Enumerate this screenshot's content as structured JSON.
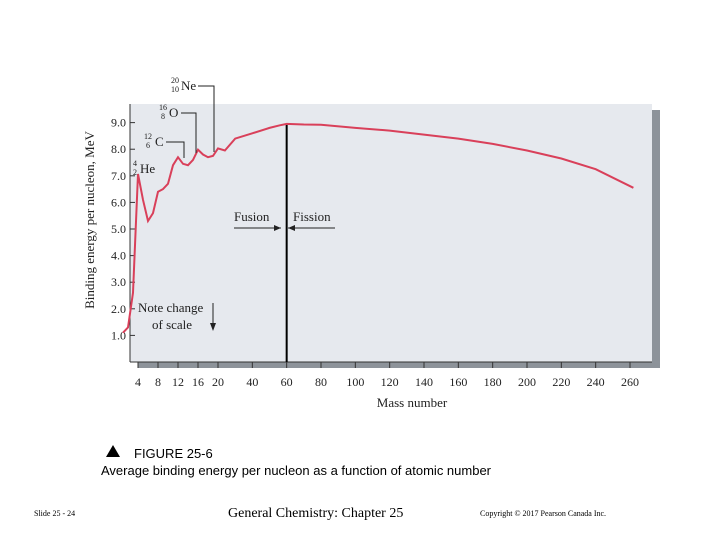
{
  "chart_data": {
    "type": "line",
    "ylabel": "Binding energy per nucleon, MeV",
    "xlabel": "Mass number",
    "ylim": [
      0,
      9.7
    ],
    "y_ticks": [
      "1.0",
      "2.0",
      "3.0",
      "4.0",
      "5.0",
      "6.0",
      "7.0",
      "8.0",
      "9.0"
    ],
    "x_ticks_left": [
      "4",
      "8",
      "12",
      "16",
      "20"
    ],
    "x_ticks_right": [
      "40",
      "60",
      "80",
      "100",
      "120",
      "140",
      "160",
      "180",
      "200",
      "220",
      "240",
      "260"
    ],
    "x_break": {
      "left_range": [
        0,
        20
      ],
      "right_range": [
        20,
        265
      ]
    },
    "series": [
      {
        "name": "Binding energy per nucleon",
        "points": [
          [
            1,
            1.1
          ],
          [
            2,
            1.3
          ],
          [
            3,
            2.6
          ],
          [
            4,
            7.07
          ],
          [
            5,
            6.1
          ],
          [
            6,
            5.3
          ],
          [
            7,
            5.6
          ],
          [
            8,
            6.4
          ],
          [
            9,
            6.5
          ],
          [
            10,
            6.7
          ],
          [
            11,
            7.4
          ],
          [
            12,
            7.7
          ],
          [
            13,
            7.45
          ],
          [
            14,
            7.4
          ],
          [
            15,
            7.6
          ],
          [
            16,
            7.98
          ],
          [
            17,
            7.8
          ],
          [
            18,
            7.7
          ],
          [
            19,
            7.75
          ],
          [
            20,
            8.03
          ],
          [
            24,
            7.95
          ],
          [
            30,
            8.4
          ],
          [
            40,
            8.6
          ],
          [
            50,
            8.8
          ],
          [
            56,
            8.9
          ],
          [
            60,
            8.95
          ],
          [
            70,
            8.93
          ],
          [
            80,
            8.92
          ],
          [
            100,
            8.8
          ],
          [
            120,
            8.7
          ],
          [
            140,
            8.55
          ],
          [
            160,
            8.4
          ],
          [
            180,
            8.2
          ],
          [
            200,
            7.95
          ],
          [
            220,
            7.65
          ],
          [
            240,
            7.25
          ],
          [
            262,
            6.55
          ]
        ]
      }
    ],
    "nuclide_labels": [
      {
        "nuclide": "He",
        "mass": "4",
        "atomic": "2",
        "x": 4,
        "y": 7.07
      },
      {
        "nuclide": "C",
        "mass": "12",
        "atomic": "6",
        "x": 12,
        "y": 7.7
      },
      {
        "nuclide": "O",
        "mass": "16",
        "atomic": "8",
        "x": 16,
        "y": 7.98
      },
      {
        "nuclide": "Ne",
        "mass": "20",
        "atomic": "10",
        "x": 20,
        "y": 8.03
      }
    ],
    "annotations": {
      "fusion": "Fusion",
      "fission": "Fission",
      "divider_x": 60,
      "scale_note_line1": "Note change",
      "scale_note_line2": "of scale"
    },
    "colors": {
      "curve": "#d9405a",
      "plot_background": "#e6e9ee",
      "shadow": "#8d939a",
      "divider": "#000000"
    }
  },
  "caption": {
    "title": "FIGURE 25-6",
    "text": "Average binding energy  per nucleon as a function of atomic number"
  },
  "footer": {
    "slide_number": "Slide 25 - 24",
    "title": "General Chemistry: Chapter 25",
    "copyright": "Copyright © 2017 Pearson Canada Inc."
  }
}
